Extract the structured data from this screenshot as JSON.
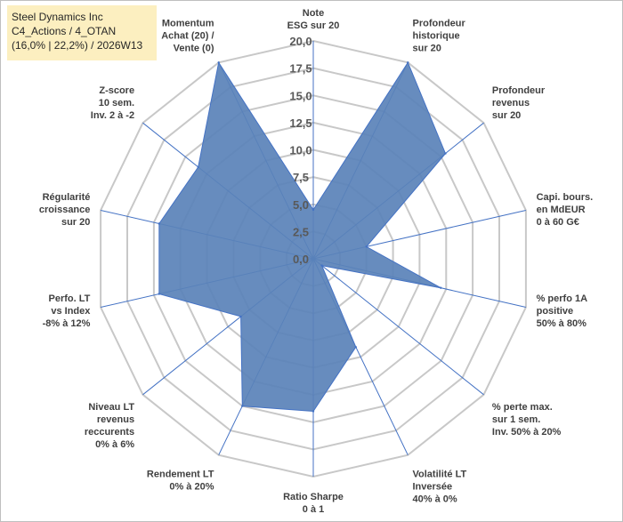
{
  "header": {
    "line1": "Steel Dynamics Inc",
    "line2": "C4_Actions / 4_OTAN",
    "line3": "(16,0% | 22,2%) / 2026W13"
  },
  "chart_data": {
    "type": "radar",
    "title": "",
    "range": [
      0,
      20
    ],
    "ticks": [
      "0,0",
      "2,5",
      "5,0",
      "7,5",
      "10,0",
      "12,5",
      "15,0",
      "17,5",
      "20,0"
    ],
    "categories": [
      [
        "Note",
        "ESG sur 20"
      ],
      [
        "Profondeur",
        "historique",
        "sur 20"
      ],
      [
        "Profondeur",
        "revenus",
        "sur 20"
      ],
      [
        "Capi. bours.",
        "en MdEUR",
        "0 à 60 G€"
      ],
      [
        "% perfo 1A",
        "positive",
        "50% à 80%"
      ],
      [
        "% perte max.",
        "sur 1 sem.",
        "Inv. 50% à 20%"
      ],
      [
        "Volatilité LT",
        "Inversée",
        "40% à 0%"
      ],
      [
        "Ratio Sharpe",
        "0 à 1"
      ],
      [
        "Rendement LT",
        "0% à 20%"
      ],
      [
        "Niveau LT",
        "revenus",
        "reccurents",
        "0% à 6%"
      ],
      [
        "Perfo. LT",
        "vs Index",
        "-8% à 12%"
      ],
      [
        "Régularité",
        "croissance",
        "sur 20"
      ],
      [
        "Z-score",
        "10 sem.",
        "Inv. 2 à -2"
      ],
      [
        "Momentum",
        "Achat (20) /",
        "Vente (0)"
      ]
    ],
    "series": [
      {
        "name": "Steel Dynamics Inc",
        "values": [
          4.5,
          20.0,
          15.5,
          5.0,
          12.0,
          1.0,
          9.0,
          14.0,
          15.0,
          8.5,
          14.5,
          14.5,
          13.5,
          20.0
        ]
      }
    ],
    "colors": {
      "fill": "#5a82b8",
      "line": "#4472c4",
      "grid": "#c8c8c8",
      "spoke": "#4472c4"
    }
  }
}
